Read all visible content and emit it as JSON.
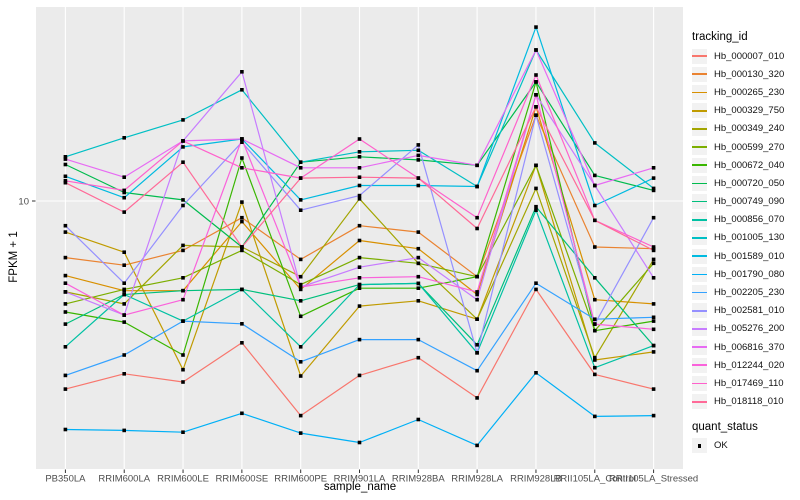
{
  "figure": {
    "background": "#FFFFFF"
  },
  "chart_data": {
    "type": "line",
    "title": "",
    "xlabel": "sample_name",
    "ylabel": "FPKM + 1",
    "y_axis": {
      "scale": "log10",
      "tick_labels": [
        "10"
      ],
      "tick_values": [
        10
      ],
      "range_hint": [
        0.9,
        58
      ]
    },
    "panel": {
      "bg": "#EBEBEB",
      "grid_color": "#FFFFFF",
      "tick_color": "#333333",
      "tick_label_color": "#4D4D4D"
    },
    "point": {
      "color": "#000000",
      "shape": "square"
    },
    "categories": [
      "PB350LA",
      "RRIM600LA",
      "RRIM600LE",
      "RRIM600SE",
      "RRIM600PE",
      "RRIM901LA",
      "RRIM928BA",
      "RRIM928LA",
      "RRIM928LB",
      "RRII105LA_Control",
      "RRII105LA_Stressed"
    ],
    "series": [
      {
        "name": "Hb_000007_010",
        "color": "#F8766D",
        "values": [
          1.83,
          2.1,
          1.95,
          2.78,
          1.44,
          2.07,
          2.43,
          1.69,
          4.5,
          2.09,
          1.83
        ]
      },
      {
        "name": "Hb_000130_320",
        "color": "#EA8331",
        "values": [
          6.0,
          5.6,
          6.4,
          8.6,
          5.9,
          8.0,
          7.55,
          5.05,
          21.7,
          6.6,
          6.5
        ]
      },
      {
        "name": "Hb_000265_230",
        "color": "#D89000",
        "values": [
          5.1,
          4.45,
          4.45,
          8.3,
          4.5,
          7.0,
          6.5,
          4.3,
          23.4,
          4.1,
          3.95
        ]
      },
      {
        "name": "Hb_000329_750",
        "color": "#C09B00",
        "values": [
          7.55,
          6.3,
          2.18,
          9.9,
          2.06,
          3.87,
          4.06,
          3.44,
          13.8,
          2.38,
          2.56
        ]
      },
      {
        "name": "Hb_000349_240",
        "color": "#A3A500",
        "values": [
          4.4,
          3.95,
          6.7,
          6.6,
          5.05,
          10.2,
          5.7,
          3.44,
          11.2,
          2.43,
          5.9
        ]
      },
      {
        "name": "Hb_000599_270",
        "color": "#7CAE00",
        "values": [
          3.95,
          4.5,
          5.0,
          6.4,
          4.7,
          6.0,
          5.7,
          5.05,
          13.8,
          3.1,
          5.7
        ]
      },
      {
        "name": "Hb_000672_040",
        "color": "#39B600",
        "values": [
          3.67,
          3.35,
          2.49,
          14.75,
          3.53,
          4.55,
          4.55,
          5.05,
          29.3,
          3.1,
          3.38
        ]
      },
      {
        "name": "Hb_000720_050",
        "color": "#00BB4E",
        "values": [
          13.9,
          10.8,
          10.1,
          6.6,
          14.2,
          14.9,
          14.5,
          13.8,
          29.3,
          12.6,
          11.0
        ]
      },
      {
        "name": "Hb_000749_090",
        "color": "#00BF7D",
        "values": [
          3.29,
          4.3,
          4.45,
          4.5,
          4.06,
          4.7,
          4.75,
          2.73,
          9.5,
          5.0,
          2.71
        ]
      },
      {
        "name": "Hb_000856_070",
        "color": "#00C1A3",
        "values": [
          2.68,
          4.3,
          3.38,
          4.5,
          2.68,
          4.7,
          4.75,
          2.54,
          9.2,
          2.22,
          2.71
        ]
      },
      {
        "name": "Hb_001005_130",
        "color": "#00BFC4",
        "values": [
          14.9,
          17.7,
          20.8,
          27.3,
          14.2,
          15.6,
          15.8,
          11.4,
          39.1,
          16.9,
          11.2
        ]
      },
      {
        "name": "Hb_001589_010",
        "color": "#00BAE0",
        "values": [
          12.5,
          10.3,
          16.3,
          17.5,
          10.1,
          11.5,
          11.5,
          11.4,
          48.1,
          9.6,
          12.3
        ]
      },
      {
        "name": "Hb_001790_080",
        "color": "#00B0F6",
        "values": [
          1.27,
          1.26,
          1.24,
          1.47,
          1.23,
          1.13,
          1.39,
          1.1,
          2.12,
          1.43,
          1.44
        ]
      },
      {
        "name": "Hb_002205_230",
        "color": "#35A2FF",
        "values": [
          2.07,
          2.49,
          3.38,
          3.3,
          2.34,
          2.86,
          2.86,
          2.16,
          4.76,
          3.44,
          3.5
        ]
      },
      {
        "name": "Hb_002581_010",
        "color": "#9590FF",
        "values": [
          8.0,
          4.76,
          9.6,
          17.0,
          9.2,
          10.5,
          16.6,
          2.54,
          21.7,
          3.29,
          8.6
        ]
      },
      {
        "name": "Hb_005276_200",
        "color": "#C77CFF",
        "values": [
          4.4,
          3.57,
          17.2,
          32.1,
          4.6,
          5.5,
          6.0,
          4.1,
          26.1,
          11.5,
          5.0
        ]
      },
      {
        "name": "Hb_006816_370",
        "color": "#E76BF3",
        "values": [
          14.6,
          12.4,
          17.2,
          17.5,
          13.5,
          13.5,
          15.1,
          13.8,
          39.1,
          11.5,
          13.5
        ]
      },
      {
        "name": "Hb_012244_020",
        "color": "#FA62DB",
        "values": [
          4.76,
          3.57,
          4.1,
          17.5,
          4.6,
          5.0,
          5.05,
          4.4,
          26.1,
          3.29,
          3.14
        ]
      },
      {
        "name": "Hb_017469_110",
        "color": "#FF61CC",
        "values": [
          12.0,
          11.0,
          17.2,
          13.5,
          12.3,
          17.5,
          12.3,
          8.6,
          31.2,
          8.4,
          6.6
        ]
      },
      {
        "name": "Hb_018118_010",
        "color": "#FF6A98",
        "values": [
          11.8,
          9.05,
          14.2,
          6.6,
          12.3,
          12.4,
          12.3,
          7.8,
          23.4,
          8.4,
          6.4
        ]
      }
    ],
    "legend": {
      "tracking_title": "tracking_id",
      "quant_title": "quant_status",
      "quant_items": [
        {
          "label": "OK",
          "color": "#000000",
          "shape": "square"
        }
      ]
    }
  }
}
